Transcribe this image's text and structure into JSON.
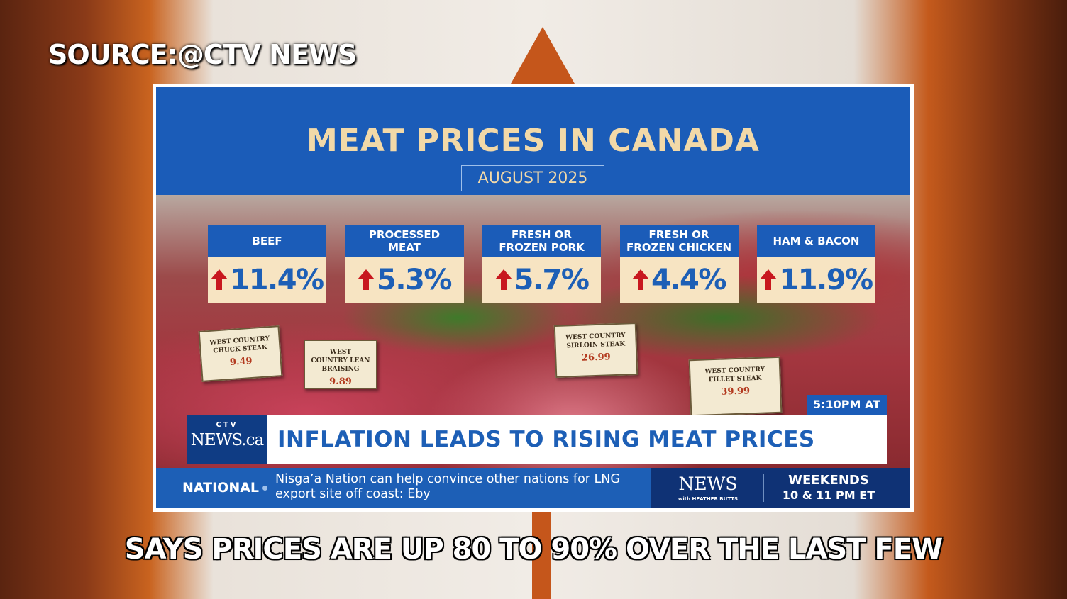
{
  "source": "SOURCE:@CTV NEWS",
  "graphic": {
    "title": "MEAT PRICES IN CANADA",
    "subtitle": "AUGUST 2025",
    "items": [
      {
        "label": "BEEF",
        "value": "11.4%"
      },
      {
        "label": "PROCESSED MEAT",
        "value": "5.3%"
      },
      {
        "label": "FRESH OR FROZEN PORK",
        "value": "5.7%"
      },
      {
        "label": "FRESH OR FROZEN CHICKEN",
        "value": "4.4%"
      },
      {
        "label": "HAM & BACON",
        "value": "11.9%"
      }
    ]
  },
  "price_tags": [
    {
      "name": "WEST COUNTRY CHUCK STEAK",
      "price": "9.49"
    },
    {
      "name": "WEST COUNTRY LEAN BRAISING",
      "price": "9.89"
    },
    {
      "name": "WEST COUNTRY SIRLOIN STEAK",
      "price": "26.99"
    },
    {
      "name": "WEST COUNTRY FILLET STEAK",
      "price": "39.99"
    }
  ],
  "broadcast": {
    "logo_top": "CTV",
    "logo": "NEWS.ca",
    "time": "5:10PM AT",
    "headline": "INFLATION LEADS TO RISING MEAT PRICES",
    "ticker_label": "NATIONAL",
    "ticker_text": "Nisga’a Nation can help convince other nations for LNG export site off coast: Eby",
    "promo_show": "NEWS",
    "promo_host": "with HEATHER BUTTS",
    "promo_days": "WEEKENDS",
    "promo_time": "10 & 11 PM ET"
  },
  "caption": "SAYS PRICES ARE UP 80 TO 90% OVER THE LAST FEW"
}
